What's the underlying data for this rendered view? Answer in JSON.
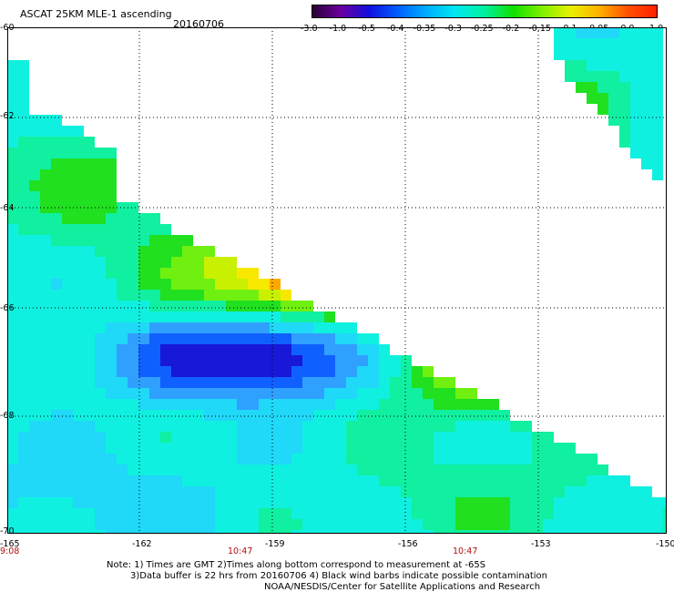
{
  "header": {
    "title": "ASCAT 25KM MLE-1 ascending",
    "date": "20160706"
  },
  "colorbar": {
    "ticks": [
      "-3.0",
      "-1.0",
      "-0.5",
      "-0.4",
      "-0.35",
      "-0.3",
      "-0.25",
      "-0.2",
      "-0.15",
      "-0.1",
      "-0.05",
      "0.0",
      "1.0"
    ],
    "colors": [
      "#2a0035",
      "#6a00a0",
      "#1010e0",
      "#0060ff",
      "#00b0ff",
      "#00e8f0",
      "#00f0a0",
      "#10e000",
      "#80f000",
      "#e8f000",
      "#ffb000",
      "#ff5000",
      "#ff2000"
    ]
  },
  "axes": {
    "lat_labels": [
      "-60",
      "-62",
      "-64",
      "-66",
      "-68",
      "-70"
    ],
    "lon_labels": [
      "-165",
      "-162",
      "-159",
      "-156",
      "-153",
      "-150"
    ],
    "time_labels": [
      "9:08",
      "10:47",
      "10:47"
    ]
  },
  "notes": {
    "line1": "Note: 1) Times are GMT 2)Times along bottom correspond to measurement at -65S",
    "line2": "3)Data buffer is 22 hrs from 20160706 4) Black wind barbs indicate possible contamination",
    "line3": "NOAA/NESDIS/Center for Satellite Applications and Research"
  }
}
